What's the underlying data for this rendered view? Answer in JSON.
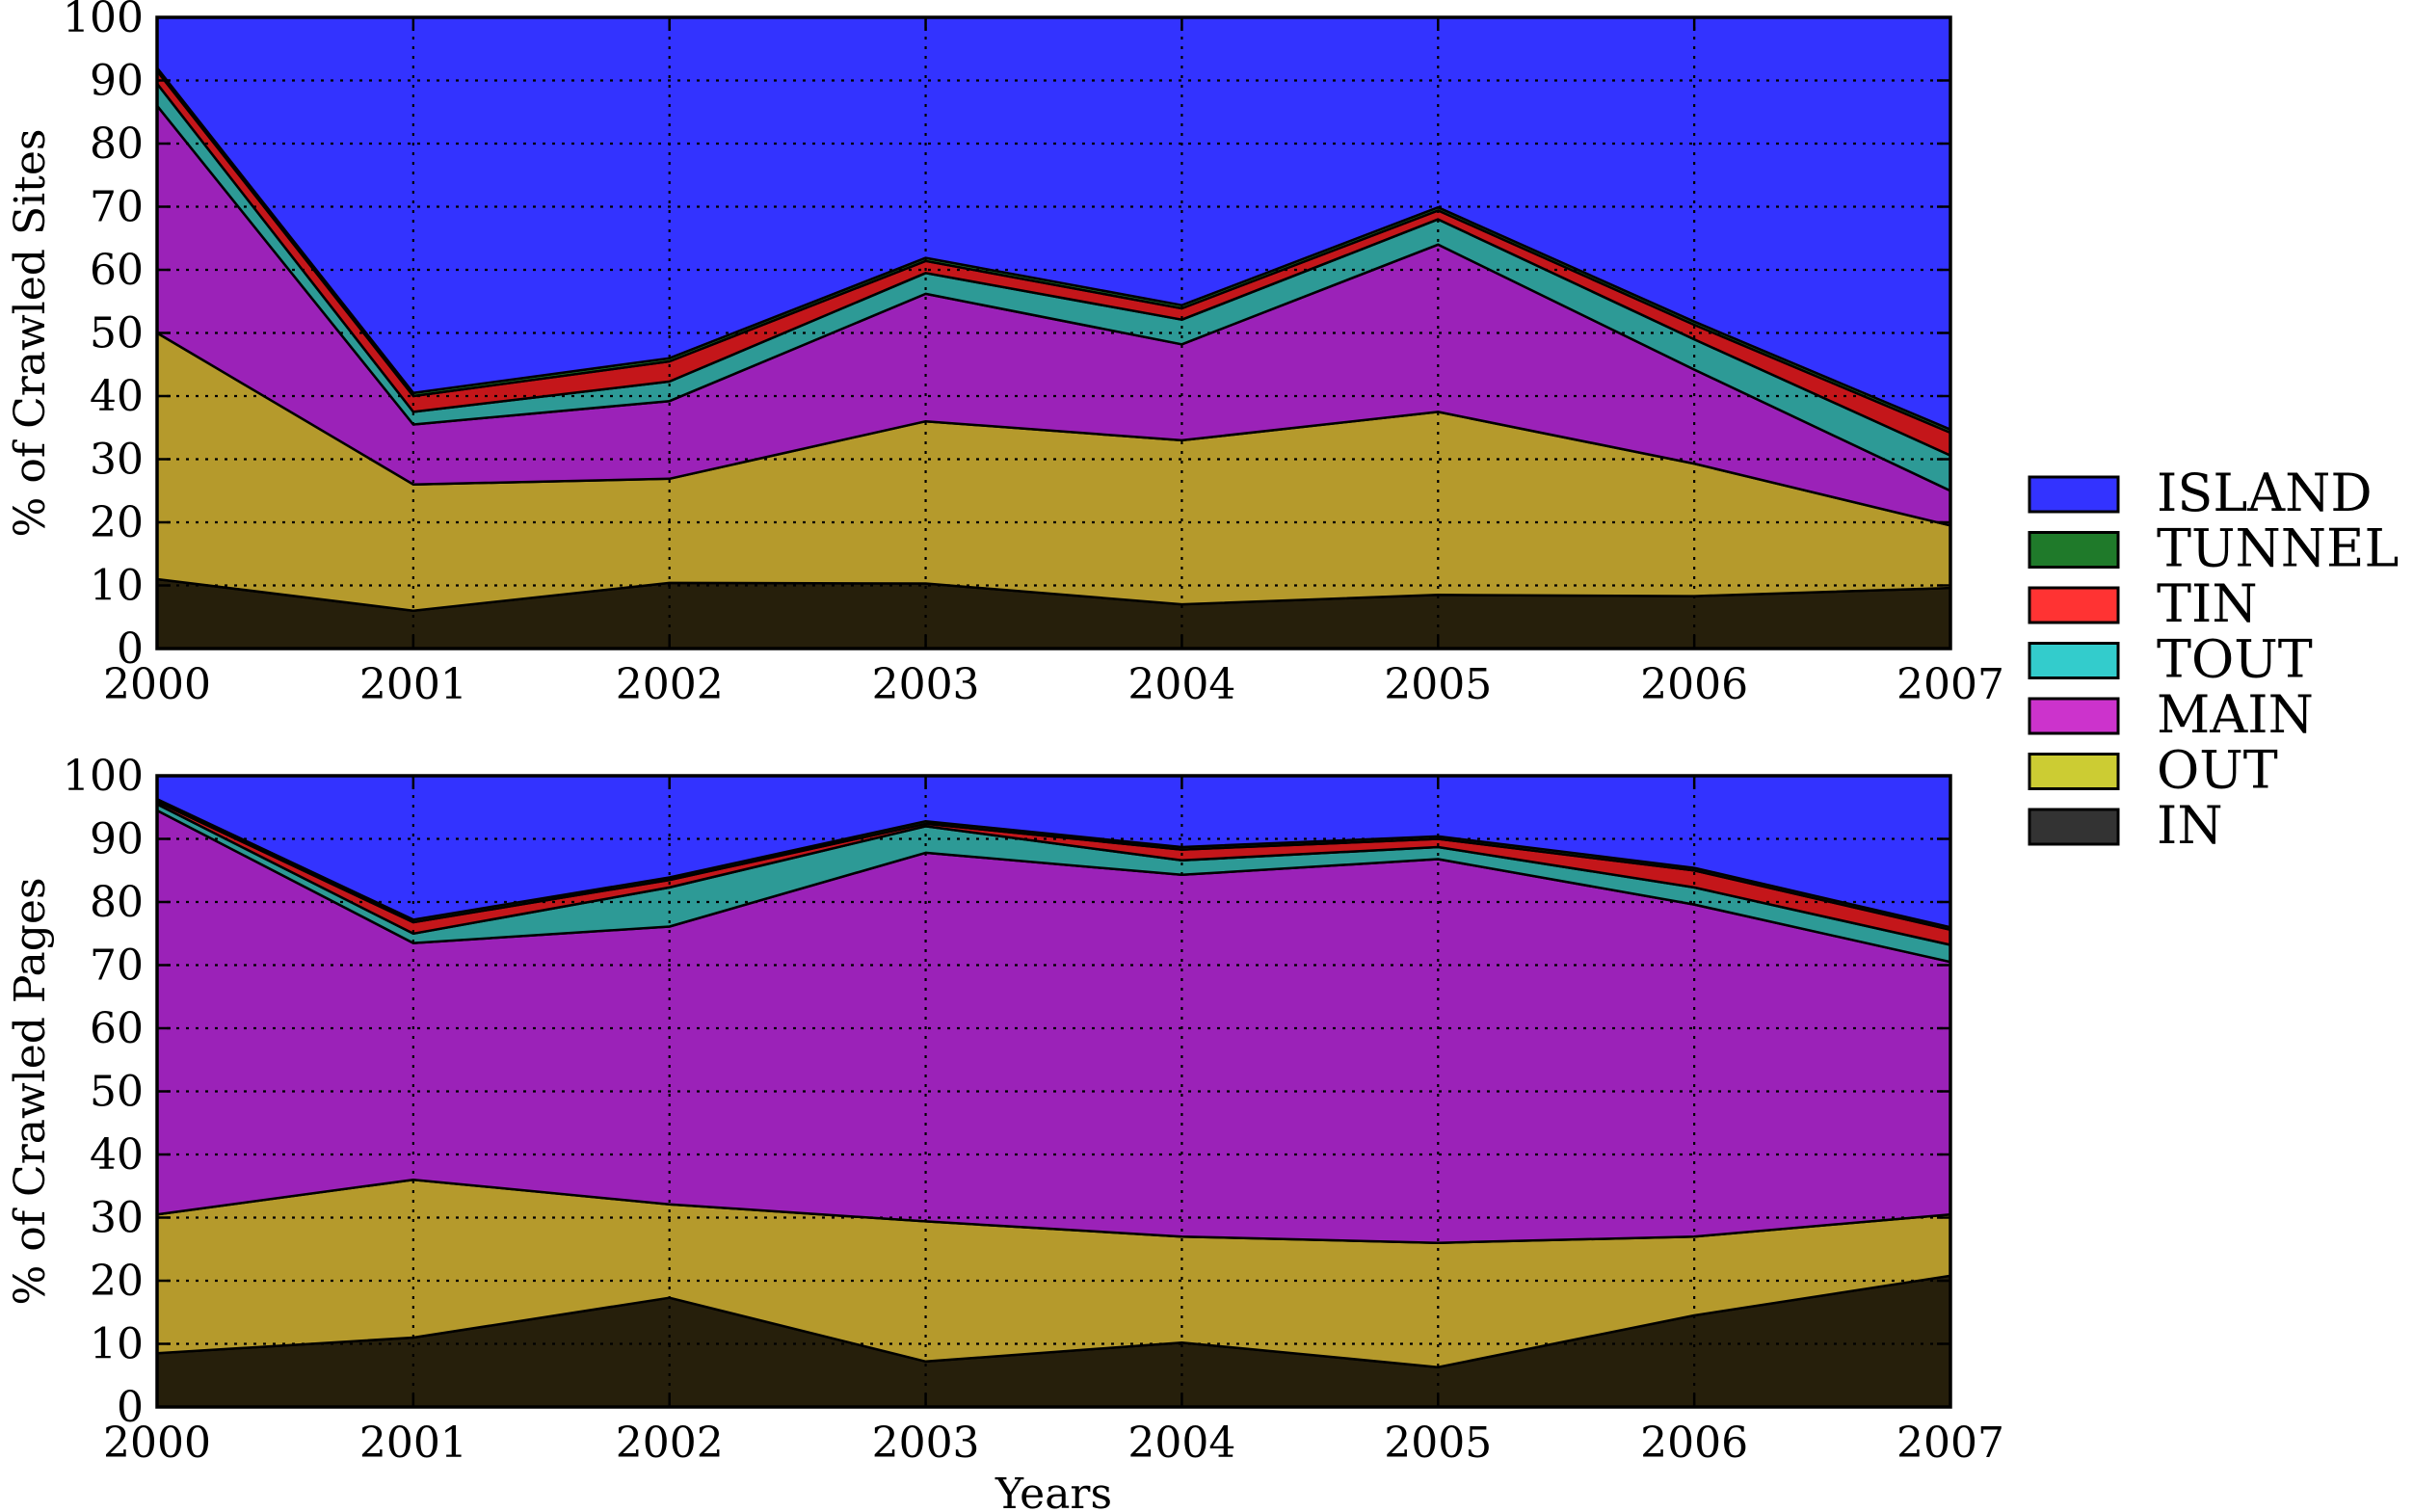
{
  "chart_data": [
    {
      "type": "area",
      "stacked": true,
      "x": [
        "2000",
        "2001",
        "2002",
        "2003",
        "2004",
        "2005",
        "2006",
        "2007"
      ],
      "xlabel": "",
      "ylabel": "% of Crawled Sites",
      "ylim": [
        0,
        100
      ],
      "yticks": [
        "0",
        "10",
        "20",
        "30",
        "40",
        "50",
        "60",
        "70",
        "80",
        "90",
        "100"
      ],
      "grid": true,
      "series": [
        {
          "name": "IN",
          "color": "#261f0b",
          "values": [
            11,
            6,
            10.4,
            10.3,
            7,
            8.5,
            8.3,
            9.6
          ]
        },
        {
          "name": "OUT",
          "color": "#b59a2c",
          "values": [
            39,
            20,
            16.5,
            25.7,
            26,
            29,
            21,
            9.9
          ]
        },
        {
          "name": "MAIN",
          "color": "#9b22b8",
          "values": [
            36,
            9.5,
            12.3,
            20.2,
            15.2,
            26.5,
            14.9,
            5.5
          ]
        },
        {
          "name": "TOUT",
          "color": "#2d9a96",
          "values": [
            3.5,
            2,
            3.1,
            3.3,
            3.9,
            4,
            4.8,
            5.6
          ]
        },
        {
          "name": "TIN",
          "color": "#c4161a",
          "values": [
            2,
            2.5,
            3.2,
            1.9,
            1.8,
            1.4,
            2.3,
            3.6
          ]
        },
        {
          "name": "TUNNEL",
          "color": "#1f7a2a",
          "values": [
            0.5,
            0.5,
            0.5,
            0.5,
            0.5,
            0.5,
            0.5,
            0.5
          ]
        },
        {
          "name": "ISLAND",
          "color": "#3333ff",
          "values": [
            8,
            59.5,
            54,
            38.1,
            45.6,
            30.1,
            48.2,
            65.3
          ]
        }
      ]
    },
    {
      "type": "area",
      "stacked": true,
      "x": [
        "2000",
        "2001",
        "2002",
        "2003",
        "2004",
        "2005",
        "2006",
        "2007"
      ],
      "xlabel": "Years",
      "ylabel": "% of Crawled Pages",
      "ylim": [
        0,
        100
      ],
      "yticks": [
        "0",
        "10",
        "20",
        "30",
        "40",
        "50",
        "60",
        "70",
        "80",
        "90",
        "100"
      ],
      "grid": true,
      "series": [
        {
          "name": "IN",
          "color": "#261f0b",
          "values": [
            8.5,
            11,
            17.3,
            7.2,
            10.2,
            6.3,
            14.5,
            20.8
          ]
        },
        {
          "name": "OUT",
          "color": "#b59a2c",
          "values": [
            22,
            25,
            14.8,
            22.2,
            16.8,
            19.7,
            12.5,
            9.7
          ]
        },
        {
          "name": "MAIN",
          "color": "#9b22b8",
          "values": [
            64,
            37.5,
            44,
            58.4,
            57.3,
            60.8,
            52.6,
            40
          ]
        },
        {
          "name": "TOUT",
          "color": "#2d9a96",
          "values": [
            1,
            1.5,
            6.2,
            4.2,
            2.3,
            1.9,
            2.7,
            2.7
          ]
        },
        {
          "name": "TIN",
          "color": "#c4161a",
          "values": [
            0.4,
            1.8,
            1.2,
            0.4,
            1.7,
            1.3,
            2.7,
            2.4
          ]
        },
        {
          "name": "TUNNEL",
          "color": "#1f7a2a",
          "values": [
            0.4,
            0.4,
            0.4,
            0.4,
            0.4,
            0.4,
            0.4,
            0.4
          ]
        },
        {
          "name": "ISLAND",
          "color": "#3333ff",
          "values": [
            3.7,
            22.8,
            16.1,
            7.2,
            11.3,
            9.6,
            14.6,
            24
          ]
        }
      ]
    }
  ],
  "legend": {
    "placement": "right",
    "items": [
      {
        "label": "ISLAND",
        "color": "#3333ff"
      },
      {
        "label": "TUNNEL",
        "color": "#1f7a2a"
      },
      {
        "label": "TIN",
        "color": "#ff3333"
      },
      {
        "label": "TOUT",
        "color": "#33cccc"
      },
      {
        "label": "MAIN",
        "color": "#cc33cc"
      },
      {
        "label": "OUT",
        "color": "#cccc33"
      },
      {
        "label": "IN",
        "color": "#333333"
      }
    ]
  }
}
